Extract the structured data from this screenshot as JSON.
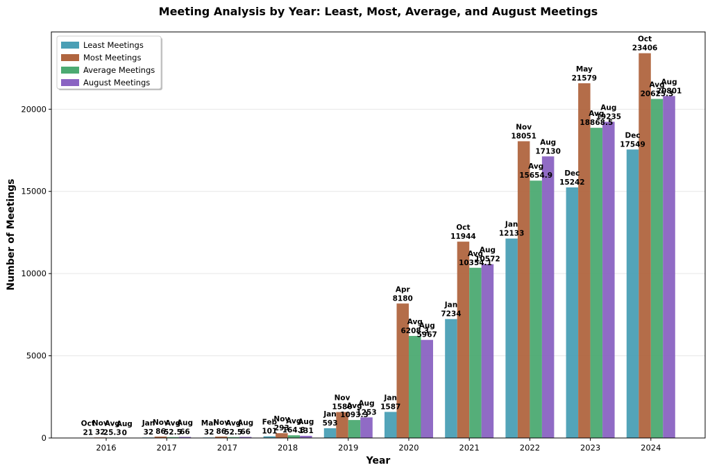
{
  "chart_data": {
    "type": "bar",
    "title": "Meeting Analysis by Year: Least, Most, Average, and August Meetings",
    "xlabel": "Year",
    "ylabel": "Number of Meetings",
    "ylim": [
      0,
      24700
    ],
    "yticks": [
      0,
      5000,
      10000,
      15000,
      20000
    ],
    "grid": true,
    "legend_position": "top-left",
    "categories": [
      "2016",
      "2017",
      "2017",
      "2018",
      "2019",
      "2020",
      "2021",
      "2022",
      "2023",
      "2024"
    ],
    "series": [
      {
        "name": "Least Meetings",
        "color": "#4a9fb5",
        "values": [
          21,
          32,
          32,
          101,
          593,
          1587,
          7234,
          12133,
          15242,
          17549
        ],
        "labels": [
          "Oct",
          "Jan",
          "Mar",
          "Feb",
          "Jan",
          "Jan",
          "Jan",
          "Jan",
          "Dec",
          "Dec"
        ],
        "value_labels": [
          "21",
          "32",
          "32",
          "101",
          "593",
          "1587",
          "7234",
          "12133",
          "15242",
          "17549"
        ]
      },
      {
        "name": "Most Meetings",
        "color": "#b0653f",
        "values": [
          32,
          86,
          86,
          293,
          1580,
          8180,
          11944,
          18051,
          21579,
          23406
        ],
        "labels": [
          "Nov",
          "Nov",
          "Nov",
          "Nov",
          "Nov",
          "Apr",
          "Oct",
          "Nov",
          "May",
          "Oct"
        ],
        "value_labels": [
          "32",
          "86",
          "86",
          "293",
          "1580",
          "8180",
          "11944",
          "18051",
          "21579",
          "23406"
        ]
      },
      {
        "name": "Average Meetings",
        "color": "#4caa72",
        "values": [
          25.3,
          52.5,
          52.5,
          164.8,
          1093.3,
          6208.3,
          10354.1,
          15654.9,
          18868.5,
          20625.3
        ],
        "labels": [
          "Avg",
          "Avg",
          "Avg",
          "Avg",
          "Avg",
          "Avg",
          "Avg",
          "Avg",
          "Avg",
          "Avg"
        ],
        "value_labels": [
          "25.3",
          "52.5",
          "52.5",
          "164.8",
          "1093.3",
          "6208.3",
          "10354.1",
          "15654.9",
          "18868.5",
          "20625.3"
        ]
      },
      {
        "name": "August Meetings",
        "color": "#8a63c2",
        "values": [
          0,
          66,
          66,
          131,
          1253,
          5967,
          10572,
          17130,
          19235,
          20801
        ],
        "labels": [
          "Aug",
          "Aug",
          "Aug",
          "Aug",
          "Aug",
          "Aug",
          "Aug",
          "Aug",
          "Aug",
          "Aug"
        ],
        "value_labels": [
          "0",
          "66",
          "66",
          "131",
          "1253",
          "5967",
          "10572",
          "17130",
          "19235",
          "20801"
        ]
      }
    ]
  }
}
